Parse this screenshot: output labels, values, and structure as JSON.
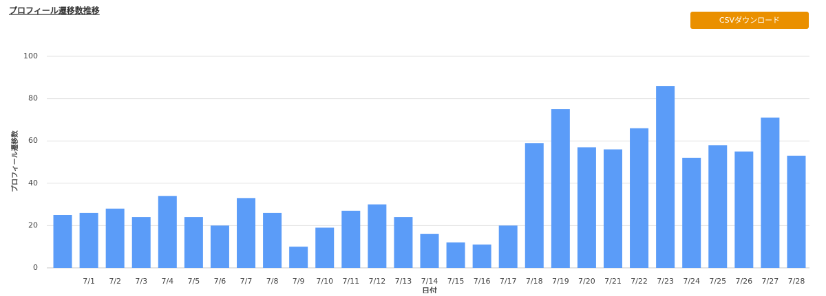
{
  "header": {
    "title": "プロフィール遷移数推移",
    "button": "CSVダウンロード"
  },
  "chart_data": {
    "type": "bar",
    "y_label": "プロフィール遷移数",
    "x_label": "日付",
    "categories": [
      null,
      "7/1",
      "7/2",
      "7/3",
      "7/4",
      "7/5",
      "7/6",
      "7/7",
      "7/8",
      "7/9",
      "7/10",
      "7/11",
      "7/12",
      "7/13",
      "7/14",
      "7/15",
      "7/16",
      "7/17",
      "7/18",
      "7/19",
      "7/20",
      "7/21",
      "7/22",
      "7/23",
      "7/24",
      "7/25",
      "7/26",
      "7/27",
      "7/28"
    ],
    "values": [
      25,
      26,
      28,
      24,
      34,
      24,
      20,
      33,
      26,
      10,
      19,
      27,
      30,
      24,
      16,
      12,
      11,
      20,
      59,
      75,
      57,
      56,
      66,
      86,
      52,
      58,
      55,
      71,
      53
    ],
    "color": "#5b9cf8",
    "ylim": [
      0,
      100
    ],
    "yticks": [
      0,
      20,
      40,
      60,
      80,
      100
    ],
    "grid": true
  }
}
